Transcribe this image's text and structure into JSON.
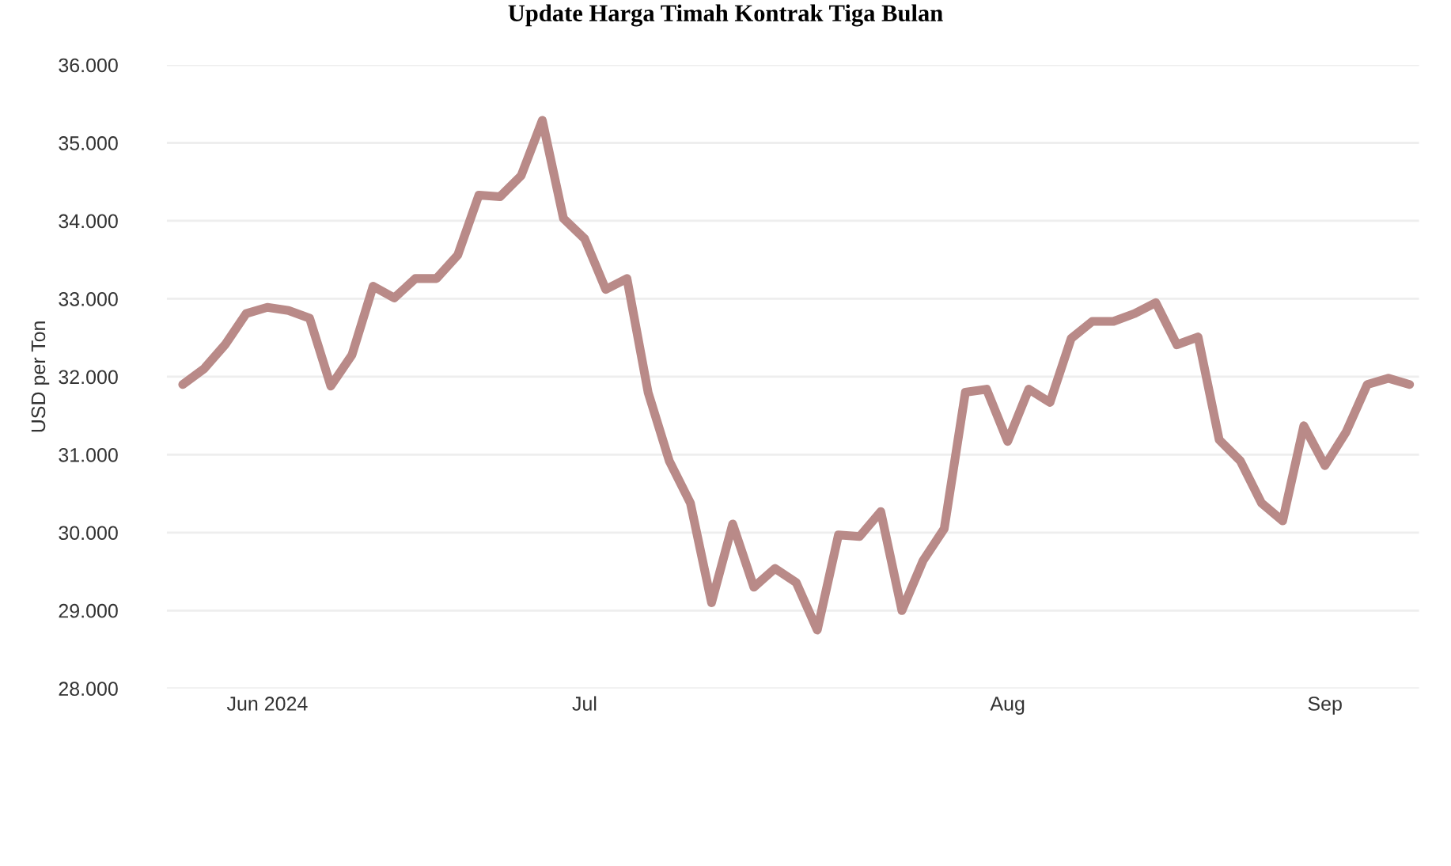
{
  "chart_data": {
    "type": "line",
    "title": "Update Harga Timah Kontrak Tiga Bulan",
    "ylabel": "USD per Ton",
    "categories": [
      null,
      null,
      null,
      null,
      "Jun 2024",
      null,
      null,
      null,
      null,
      null,
      null,
      null,
      null,
      null,
      null,
      null,
      null,
      null,
      null,
      "Jul",
      null,
      null,
      null,
      null,
      null,
      null,
      null,
      null,
      null,
      null,
      null,
      null,
      null,
      null,
      null,
      null,
      null,
      null,
      null,
      "Aug",
      null,
      null,
      null,
      null,
      null,
      null,
      null,
      null,
      null,
      null,
      null,
      null,
      null,
      null,
      "Sep",
      null,
      null,
      null,
      null
    ],
    "series": [
      {
        "color": "#b98a88",
        "values": [
          31900,
          32100,
          32410,
          32810,
          32890,
          32850,
          32750,
          31880,
          32280,
          33160,
          33010,
          33260,
          33260,
          33560,
          34330,
          34310,
          34580,
          35290,
          34030,
          33770,
          33120,
          33260,
          31800,
          30920,
          30380,
          29100,
          30110,
          29300,
          29540,
          29360,
          28750,
          29970,
          29950,
          30270,
          29000,
          29640,
          30050,
          31800,
          31840,
          31170,
          31840,
          31670,
          32490,
          32710,
          32710,
          32810,
          32950,
          32410,
          32510,
          31190,
          30920,
          30380,
          30150,
          31370,
          30860,
          31290,
          31900,
          31980,
          31900
        ]
      }
    ],
    "ylim": [
      28000,
      36000
    ],
    "yticks": [
      {
        "value": 28000,
        "label": "28.000"
      },
      {
        "value": 29000,
        "label": "29.000"
      },
      {
        "value": 30000,
        "label": "30.000"
      },
      {
        "value": 31000,
        "label": "31.000"
      },
      {
        "value": 32000,
        "label": "32.000"
      },
      {
        "value": 33000,
        "label": "33.000"
      },
      {
        "value": 34000,
        "label": "34.000"
      },
      {
        "value": 35000,
        "label": "35.000"
      },
      {
        "value": 36000,
        "label": "36.000"
      }
    ],
    "grid": "y",
    "line_style": "solid",
    "marker": "none"
  }
}
